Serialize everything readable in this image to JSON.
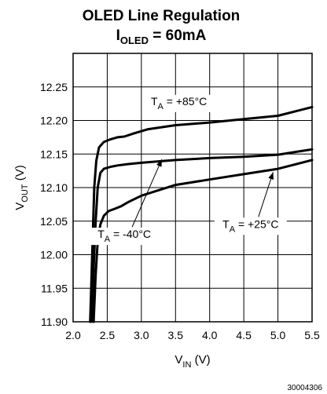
{
  "chart_data": {
    "type": "line",
    "title_main": "OLED Line Regulation",
    "title_sub": {
      "prefix": "I",
      "subscript": "OLED",
      "suffix": " = 60mA"
    },
    "xlabel": {
      "prefix": "V",
      "subscript": "IN",
      "suffix": " (V)"
    },
    "ylabel": {
      "prefix": "V",
      "subscript": "OUT",
      "suffix": " (V)"
    },
    "xlim": [
      2.0,
      5.5
    ],
    "ylim": [
      11.9,
      12.3
    ],
    "x_ticks": [
      "2.0",
      "2.5",
      "3.0",
      "3.5",
      "4.0",
      "4.5",
      "5.0",
      "5.5"
    ],
    "y_ticks": [
      "11.90",
      "11.95",
      "12.00",
      "12.05",
      "12.10",
      "12.15",
      "12.20",
      "12.25"
    ],
    "grid": true,
    "series": [
      {
        "name": "T_A = +85°C",
        "x": [
          2.25,
          2.28,
          2.31,
          2.34,
          2.38,
          2.45,
          2.55,
          2.65,
          2.75,
          2.9,
          3.1,
          3.5,
          4.0,
          4.5,
          5.0,
          5.5
        ],
        "y": [
          11.9,
          12.0,
          12.1,
          12.14,
          12.16,
          12.168,
          12.172,
          12.175,
          12.176,
          12.181,
          12.187,
          12.193,
          12.197,
          12.202,
          12.207,
          12.22
        ]
      },
      {
        "name": "T_A = -40°C",
        "x": [
          2.27,
          2.3,
          2.33,
          2.36,
          2.4,
          2.45,
          2.55,
          2.65,
          2.8,
          3.0,
          3.5,
          4.0,
          4.5,
          5.0,
          5.5
        ],
        "y": [
          11.9,
          11.98,
          12.05,
          12.1,
          12.122,
          12.128,
          12.131,
          12.133,
          12.135,
          12.137,
          12.141,
          12.144,
          12.146,
          12.149,
          12.157
        ]
      },
      {
        "name": "T_A = +25°C",
        "x": [
          2.3,
          2.33,
          2.36,
          2.4,
          2.45,
          2.52,
          2.6,
          2.7,
          2.8,
          3.0,
          3.5,
          4.0,
          4.5,
          5.0,
          5.5
        ],
        "y": [
          11.9,
          11.97,
          12.02,
          12.045,
          12.058,
          12.065,
          12.068,
          12.072,
          12.078,
          12.088,
          12.104,
          12.112,
          12.12,
          12.128,
          12.141
        ]
      }
    ],
    "annotations": [
      {
        "prefix": "T",
        "subscript": "A",
        "suffix": " = +85°C",
        "x": 3.55,
        "y": 12.223,
        "arrow_to": null
      },
      {
        "prefix": "T",
        "subscript": "A",
        "suffix": " = -40°C",
        "x": 2.75,
        "y": 12.025,
        "arrow_to": [
          3.3,
          12.142
        ]
      },
      {
        "prefix": "T",
        "subscript": "A",
        "suffix": " = +25°C",
        "x": 4.6,
        "y": 12.04,
        "arrow_to": [
          4.93,
          12.123
        ]
      }
    ],
    "footnote": "30004306"
  }
}
